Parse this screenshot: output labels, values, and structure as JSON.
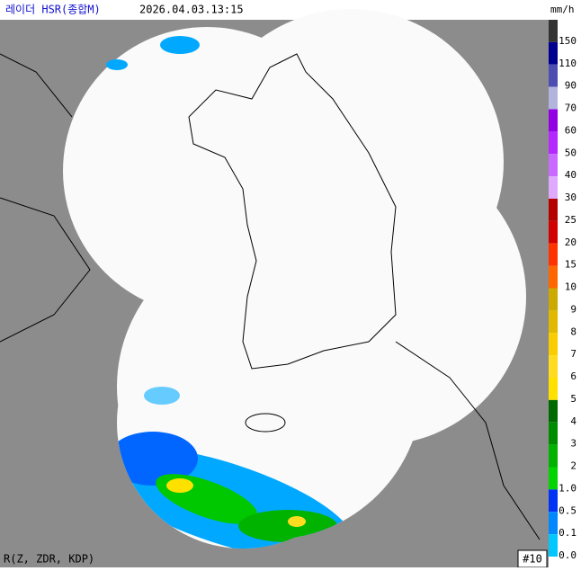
{
  "header": {
    "title": "레이더 HSR(종합M)",
    "timestamp": "2026.04.03.13:15"
  },
  "legend": {
    "unit": "mm/h",
    "items": [
      {
        "label": "150",
        "color": "#333333"
      },
      {
        "label": "110",
        "color": "#000090"
      },
      {
        "label": "90",
        "color": "#4c4eb1"
      },
      {
        "label": "70",
        "color": "#b3b4de"
      },
      {
        "label": "60",
        "color": "#9300e4"
      },
      {
        "label": "50",
        "color": "#b329ff"
      },
      {
        "label": "40",
        "color": "#c969ff"
      },
      {
        "label": "30",
        "color": "#dfa9ff"
      },
      {
        "label": "25",
        "color": "#b40000"
      },
      {
        "label": "20",
        "color": "#d20000"
      },
      {
        "label": "15",
        "color": "#ff3300"
      },
      {
        "label": "10",
        "color": "#ff6600"
      },
      {
        "label": "9",
        "color": "#ccaa00"
      },
      {
        "label": "8",
        "color": "#e0b900"
      },
      {
        "label": "7",
        "color": "#f9cd00"
      },
      {
        "label": "6",
        "color": "#ffdc1f"
      },
      {
        "label": "5",
        "color": "#ffe100"
      },
      {
        "label": "4",
        "color": "#006a00"
      },
      {
        "label": "3",
        "color": "#008c00"
      },
      {
        "label": "2",
        "color": "#00b300"
      },
      {
        "label": "1.0",
        "color": "#00d500"
      },
      {
        "label": "0.5",
        "color": "#0033f5"
      },
      {
        "label": "0.1",
        "color": "#0088ff"
      },
      {
        "label": "0.0",
        "color": "#00c8ff"
      }
    ]
  },
  "footer": {
    "method": "R(Z, ZDR, KDP)",
    "site_id": "#10"
  }
}
